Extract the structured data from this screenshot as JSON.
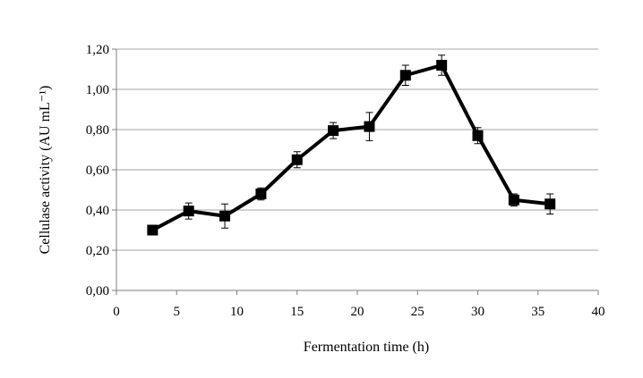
{
  "chart_data": {
    "type": "line",
    "title": "",
    "xlabel": "Fermentation time (h)",
    "ylabel": "Cellulase activity (AU mL⁻¹)",
    "xlim": [
      0,
      40
    ],
    "ylim": [
      0,
      1.2
    ],
    "xticks": [
      0,
      5,
      10,
      15,
      20,
      25,
      30,
      35,
      40
    ],
    "xtick_labels": [
      "0",
      "5",
      "10",
      "15",
      "20",
      "25",
      "30",
      "35",
      "40"
    ],
    "yticks": [
      0,
      0.2,
      0.4,
      0.6,
      0.8,
      1.0,
      1.2
    ],
    "ytick_labels": [
      "0,00",
      "0,20",
      "0,40",
      "0,60",
      "0,80",
      "1,00",
      "1,20"
    ],
    "grid": "horizontal",
    "legend": "none",
    "marker": "square",
    "color": "#000000",
    "series": [
      {
        "x": [
          3,
          6,
          9,
          12,
          15,
          18,
          21,
          24,
          27,
          30,
          33,
          36
        ],
        "y": [
          0.3,
          0.395,
          0.37,
          0.48,
          0.65,
          0.795,
          0.815,
          1.07,
          1.12,
          0.77,
          0.45,
          0.43
        ],
        "error": [
          0.015,
          0.04,
          0.06,
          0.03,
          0.04,
          0.04,
          0.07,
          0.05,
          0.05,
          0.04,
          0.03,
          0.05
        ]
      }
    ]
  }
}
